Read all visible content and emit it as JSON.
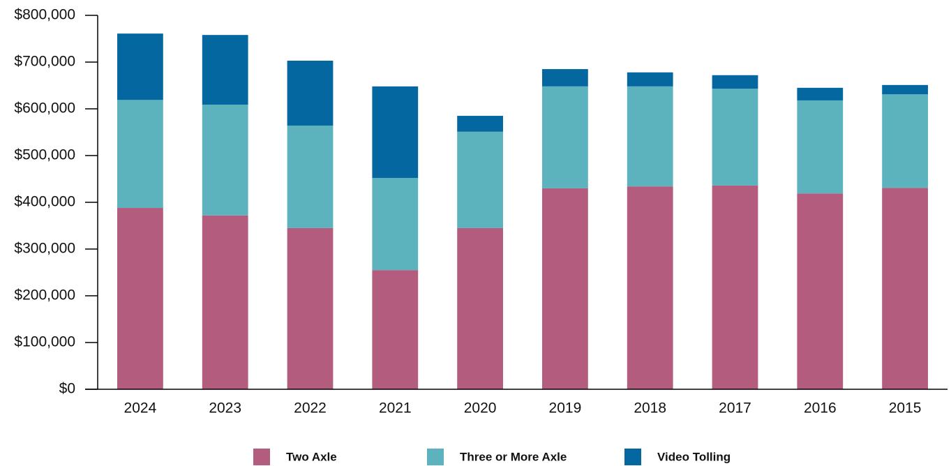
{
  "chart_data": {
    "type": "stacked_bar",
    "categories": [
      "2024",
      "2023",
      "2022",
      "2021",
      "2020",
      "2019",
      "2018",
      "2017",
      "2016",
      "2015"
    ],
    "series": [
      {
        "name": "Two Axle",
        "color": "#b35c7d",
        "values": [
          388000,
          372000,
          345000,
          255000,
          345000,
          430000,
          434000,
          436000,
          419000,
          431000
        ]
      },
      {
        "name": "Three or More Axle",
        "color": "#5cb3bd",
        "values": [
          231000,
          237000,
          219000,
          197000,
          206000,
          218000,
          214000,
          207000,
          199000,
          200000
        ]
      },
      {
        "name": "Video Tolling",
        "color": "#0567a0",
        "values": [
          142000,
          149000,
          139000,
          196000,
          34000,
          37000,
          30000,
          29000,
          27000,
          20000
        ]
      }
    ],
    "ylim": [
      0,
      800000
    ],
    "yticks": [
      {
        "value": 0,
        "label": "$0"
      },
      {
        "value": 100000,
        "label": "$100,000"
      },
      {
        "value": 200000,
        "label": "$200,000"
      },
      {
        "value": 300000,
        "label": "$300,000"
      },
      {
        "value": 400000,
        "label": "$400,000"
      },
      {
        "value": 500000,
        "label": "$500,000"
      },
      {
        "value": 600000,
        "label": "$600,000"
      },
      {
        "value": 700000,
        "label": "$700,000"
      },
      {
        "value": 800000,
        "label": "$800,000"
      }
    ],
    "legend": "bottom"
  }
}
